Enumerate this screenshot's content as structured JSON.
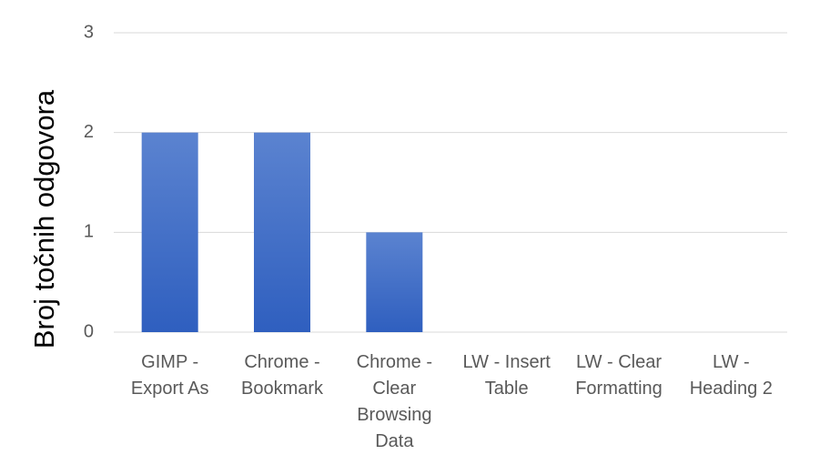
{
  "chart_data": {
    "type": "bar",
    "title": "",
    "xlabel": "",
    "ylabel": "Broj točnih odgovora",
    "categories": [
      [
        "GIMP -",
        "Export As"
      ],
      [
        "Chrome -",
        "Bookmark"
      ],
      [
        "Chrome -",
        "Clear",
        "Browsing",
        "Data"
      ],
      [
        "LW - Insert",
        "Table"
      ],
      [
        "LW - Clear",
        "Formatting"
      ],
      [
        "LW -",
        "Heading 2"
      ]
    ],
    "values": [
      2,
      2,
      1,
      0,
      0,
      0
    ],
    "ylim": [
      0,
      3
    ],
    "yticks": [
      "0",
      "1",
      "2",
      "3"
    ],
    "grid": true,
    "colors": {
      "bar_top": "#5b83d0",
      "bar_bottom": "#2f5fbf",
      "grid": "#d9d9d9",
      "text": "#595959"
    }
  }
}
